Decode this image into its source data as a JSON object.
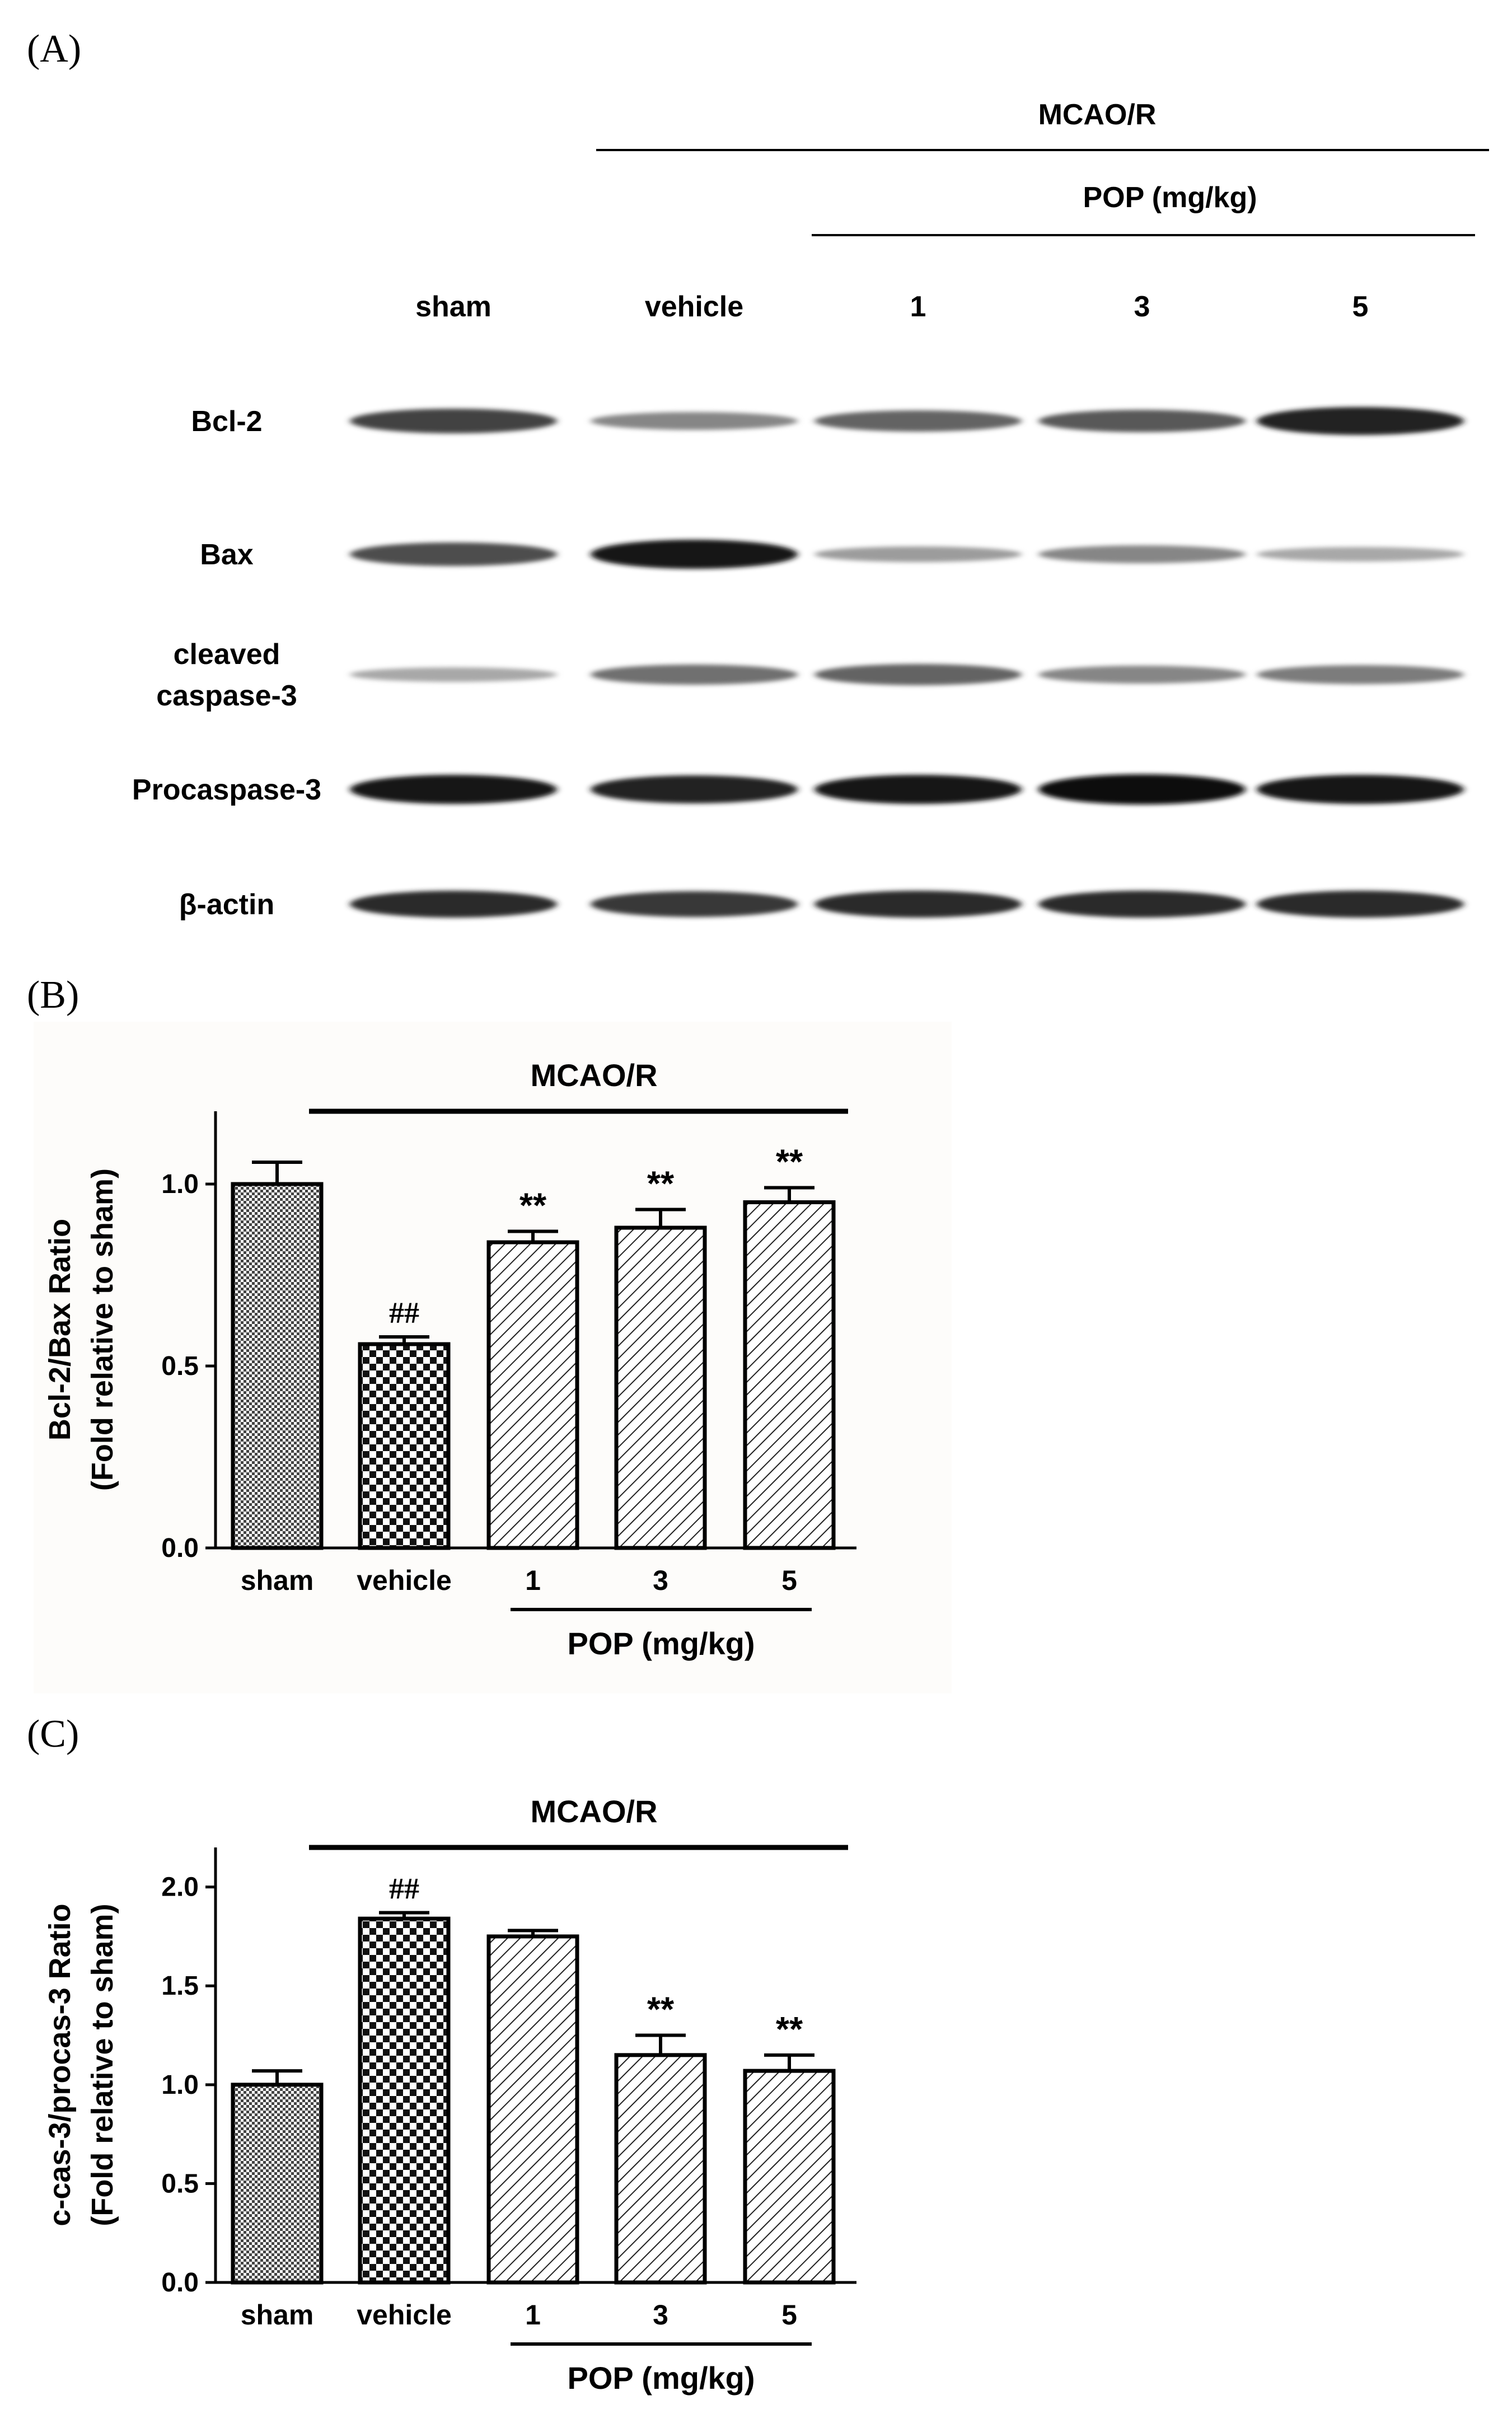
{
  "panels": {
    "A": "(A)",
    "B": "(B)",
    "C": "(C)"
  },
  "blot": {
    "header_group": "MCAO/R",
    "header_sub": "POP  (mg/kg)",
    "lanes": [
      "sham",
      "vehicle",
      "1",
      "3",
      "5"
    ],
    "rows": [
      {
        "label": [
          "Bcl-2"
        ],
        "intensity": [
          0.75,
          0.45,
          0.6,
          0.65,
          0.9
        ]
      },
      {
        "label": [
          "Bax"
        ],
        "intensity": [
          0.7,
          0.95,
          0.35,
          0.45,
          0.3
        ]
      },
      {
        "label": [
          "cleaved",
          "caspase-3"
        ],
        "intensity": [
          0.3,
          0.55,
          0.6,
          0.45,
          0.5
        ]
      },
      {
        "label": [
          "Procaspase-3"
        ],
        "intensity": [
          0.95,
          0.9,
          0.95,
          1.0,
          0.95
        ]
      },
      {
        "label": [
          "β-actin"
        ],
        "intensity": [
          0.85,
          0.8,
          0.85,
          0.85,
          0.85
        ]
      }
    ]
  },
  "chart_data": [
    {
      "type": "bar",
      "categories": [
        "sham",
        "vehicle",
        "1",
        "3",
        "5"
      ],
      "values": [
        1.0,
        0.56,
        0.84,
        0.88,
        0.95
      ],
      "errors": [
        0.06,
        0.02,
        0.03,
        0.05,
        0.04
      ],
      "annotations": [
        "",
        "##",
        "**",
        "**",
        "**"
      ],
      "ylabel": [
        "Bcl-2/Bax Ratio",
        "(Fold relative to sham)"
      ],
      "yticks": [
        "0.0",
        "0.5",
        "1.0"
      ],
      "ylim": [
        0,
        1.2
      ],
      "group_top": "MCAO/R",
      "group_bottom": "POP (mg/kg)",
      "grid": false,
      "patterns": [
        "fine",
        "checker",
        "hatch",
        "hatch",
        "hatch"
      ]
    },
    {
      "type": "bar",
      "categories": [
        "sham",
        "vehicle",
        "1",
        "3",
        "5"
      ],
      "values": [
        1.0,
        1.84,
        1.75,
        1.15,
        1.07
      ],
      "errors": [
        0.07,
        0.03,
        0.03,
        0.1,
        0.08
      ],
      "annotations": [
        "",
        "##",
        "",
        "**",
        "**"
      ],
      "ylabel": [
        "c-cas-3/procas-3 Ratio",
        "(Fold relative to sham)"
      ],
      "yticks": [
        "0.0",
        "0.5",
        "1.0",
        "1.5",
        "2.0"
      ],
      "ylim": [
        0,
        2.2
      ],
      "group_top": "MCAO/R",
      "group_bottom": "POP (mg/kg)",
      "grid": false,
      "patterns": [
        "fine",
        "checker",
        "hatch",
        "hatch",
        "hatch"
      ]
    }
  ]
}
